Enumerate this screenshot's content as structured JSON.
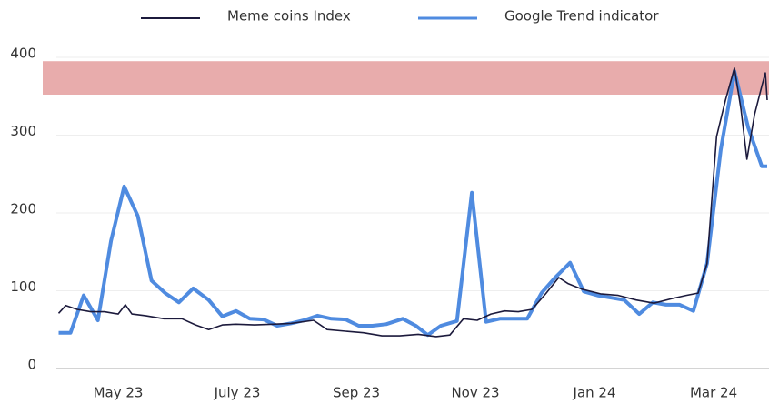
{
  "chart_data": {
    "type": "line",
    "series": [
      {
        "name": "Meme coins Index",
        "color": "#1c1a3c",
        "x": [
          0,
          0.12,
          0.31,
          0.54,
          0.77,
          1.0,
          1.12,
          1.23,
          1.46,
          1.77,
          2.07,
          2.3,
          2.52,
          2.75,
          2.98,
          3.29,
          3.6,
          3.9,
          4.28,
          4.51,
          4.82,
          5.12,
          5.43,
          5.73,
          6.04,
          6.34,
          6.57,
          6.8,
          7.03,
          7.26,
          7.49,
          7.72,
          7.95,
          8.18,
          8.4,
          8.56,
          8.79,
          9.1,
          9.4,
          9.7,
          10.0,
          10.31,
          10.54,
          10.74,
          10.89,
          11.05,
          11.2,
          11.35,
          11.46,
          11.56,
          11.69,
          11.81,
          11.87,
          11.9
        ],
        "values": [
          71,
          81,
          76,
          73,
          73,
          70,
          82,
          70,
          68,
          64,
          64,
          56,
          50,
          56,
          57,
          56,
          57,
          58,
          62,
          50,
          48,
          46,
          42,
          42,
          44,
          41,
          43,
          64,
          62,
          70,
          74,
          73,
          76,
          96,
          117,
          109,
          102,
          96,
          94,
          88,
          84,
          90,
          94,
          97,
          135,
          298,
          345,
          386,
          333,
          269,
          327,
          363,
          380,
          345
        ]
      },
      {
        "name": "Google Trend indicator",
        "color": "#4f8be0",
        "x": [
          0,
          0.2,
          0.42,
          0.66,
          0.88,
          1.1,
          1.33,
          1.56,
          1.79,
          2.02,
          2.26,
          2.52,
          2.75,
          2.98,
          3.21,
          3.44,
          3.67,
          3.9,
          4.12,
          4.35,
          4.58,
          4.82,
          5.04,
          5.27,
          5.5,
          5.78,
          6.0,
          6.2,
          6.42,
          6.69,
          6.94,
          7.18,
          7.41,
          7.64,
          7.87,
          8.11,
          8.34,
          8.59,
          8.82,
          9.05,
          9.28,
          9.5,
          9.75,
          9.98,
          10.2,
          10.43,
          10.66,
          10.89,
          11.12,
          11.35,
          11.58,
          11.81,
          11.9
        ],
        "values": [
          46,
          46,
          94,
          62,
          164,
          234,
          196,
          113,
          97,
          85,
          103,
          88,
          67,
          74,
          64,
          63,
          55,
          58,
          62,
          68,
          64,
          63,
          55,
          55,
          57,
          64,
          55,
          43,
          55,
          61,
          226,
          60,
          64,
          64,
          64,
          97,
          117,
          136,
          99,
          94,
          91,
          88,
          70,
          85,
          82,
          82,
          74,
          135,
          281,
          382,
          310,
          260,
          260
        ]
      }
    ],
    "bands": [
      {
        "from": 352,
        "to": 395,
        "color": "#e8acac"
      }
    ],
    "xlim": [
      0,
      11.9
    ],
    "xticks": [
      {
        "value": 1,
        "label": "May 23"
      },
      {
        "value": 3,
        "label": "July 23"
      },
      {
        "value": 5,
        "label": "Sep 23"
      },
      {
        "value": 7,
        "label": "Nov 23"
      },
      {
        "value": 9,
        "label": "Jan 24"
      },
      {
        "value": 11,
        "label": "Mar 24"
      }
    ],
    "ylim": [
      0,
      410
    ],
    "yticks": [
      0,
      100,
      200,
      300,
      400
    ],
    "grid": true
  }
}
